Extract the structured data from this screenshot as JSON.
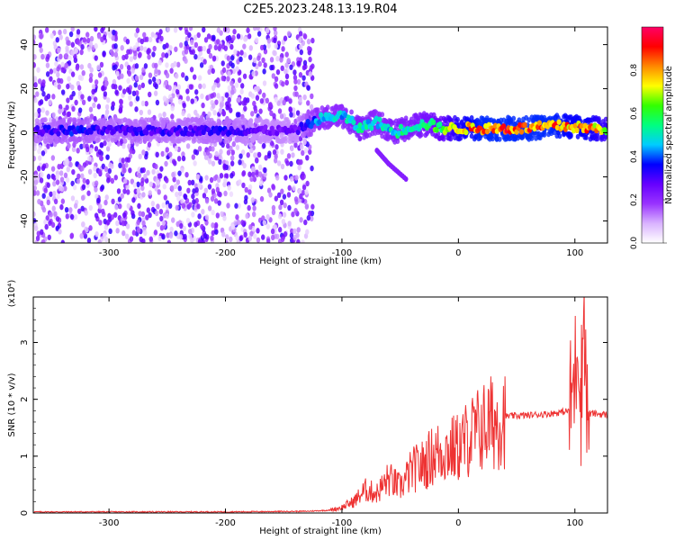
{
  "title": "C2E5.2023.248.13.19.R04",
  "chart_data": [
    {
      "type": "heatmap",
      "xlabel": "Height of straight line (km)",
      "ylabel": "Frequency (Hz)",
      "xlim": [
        -365,
        128
      ],
      "ylim": [
        -50,
        48
      ],
      "xticks": [
        -300,
        -200,
        -100,
        0,
        100
      ],
      "yticks": [
        -40,
        -20,
        0,
        20,
        40
      ],
      "colorbar": {
        "label": "Normalized spectral amplitude",
        "range": [
          0.0,
          1.0
        ],
        "ticks": [
          0.0,
          0.2,
          0.4,
          0.6,
          0.8
        ],
        "colors": [
          "#ffffff",
          "#d9b3ff",
          "#9933ff",
          "#6600ff",
          "#0000ff",
          "#00ccff",
          "#00ff80",
          "#33ff00",
          "#ffff00",
          "#ff8800",
          "#ff0000",
          "#ff0066"
        ]
      },
      "noise_region": {
        "x": [
          -365,
          -125
        ],
        "freq": [
          -50,
          48
        ]
      },
      "ridge": [
        {
          "x": -360,
          "freq": 1,
          "amp": 0.3
        },
        {
          "x": -330,
          "freq": 1,
          "amp": 0.35
        },
        {
          "x": -300,
          "freq": 1,
          "amp": 0.3
        },
        {
          "x": -270,
          "freq": 1,
          "amp": 0.32
        },
        {
          "x": -240,
          "freq": 1,
          "amp": 0.3
        },
        {
          "x": -200,
          "freq": 1,
          "amp": 0.32
        },
        {
          "x": -170,
          "freq": 1,
          "amp": 0.25
        },
        {
          "x": -140,
          "freq": 1,
          "amp": 0.25
        },
        {
          "x": -120,
          "freq": 6,
          "amp": 0.45
        },
        {
          "x": -100,
          "freq": 8,
          "amp": 0.45
        },
        {
          "x": -85,
          "freq": 2,
          "amp": 0.5
        },
        {
          "x": -70,
          "freq": 5,
          "amp": 0.45
        },
        {
          "x": -55,
          "freq": 0,
          "amp": 0.5
        },
        {
          "x": -40,
          "freq": 3,
          "amp": 0.5
        },
        {
          "x": -25,
          "freq": 4,
          "amp": 0.55
        },
        {
          "x": -15,
          "freq": 2,
          "amp": 0.6
        },
        {
          "x": 0,
          "freq": 2,
          "amp": 0.75
        },
        {
          "x": 20,
          "freq": 2,
          "amp": 0.85
        },
        {
          "x": 40,
          "freq": 2,
          "amp": 0.85
        },
        {
          "x": 60,
          "freq": 2,
          "amp": 0.85
        },
        {
          "x": 80,
          "freq": 3,
          "amp": 0.85
        },
        {
          "x": 95,
          "freq": 3,
          "amp": 0.8
        },
        {
          "x": 110,
          "freq": 2,
          "amp": 0.8
        },
        {
          "x": 125,
          "freq": 2,
          "amp": 0.7
        }
      ],
      "secondary_branch": [
        {
          "x": -70,
          "freq": -8
        },
        {
          "x": -60,
          "freq": -14
        },
        {
          "x": -45,
          "freq": -21
        }
      ]
    },
    {
      "type": "line",
      "xlabel": "Height of straight line (km)",
      "ylabel": "SNR (10 * v/v)",
      "yunit": "(x10⁴)",
      "xlim": [
        -365,
        128
      ],
      "ylim": [
        0,
        3.8
      ],
      "xticks": [
        -300,
        -200,
        -100,
        0,
        100
      ],
      "yticks": [
        0,
        1,
        2,
        3
      ],
      "color": "#ee3333",
      "series": [
        {
          "x": [
            -365,
            -300,
            -200,
            -130,
            -110,
            -100,
            -90,
            -80,
            -70,
            -60,
            -50,
            -40,
            -30,
            -20,
            -10,
            0,
            10,
            20,
            30,
            40,
            60,
            80,
            90,
            95,
            100,
            103,
            105,
            108,
            110,
            115,
            128
          ],
          "y": [
            0.02,
            0.02,
            0.02,
            0.03,
            0.05,
            0.1,
            0.2,
            0.4,
            0.35,
            0.6,
            0.45,
            0.75,
            0.85,
            1.05,
            1.1,
            1.15,
            1.35,
            1.5,
            1.6,
            1.7,
            1.72,
            1.75,
            1.78,
            1.8,
            2.4,
            3.3,
            1.8,
            3.8,
            1.75,
            1.75,
            1.73
          ]
        }
      ]
    }
  ]
}
